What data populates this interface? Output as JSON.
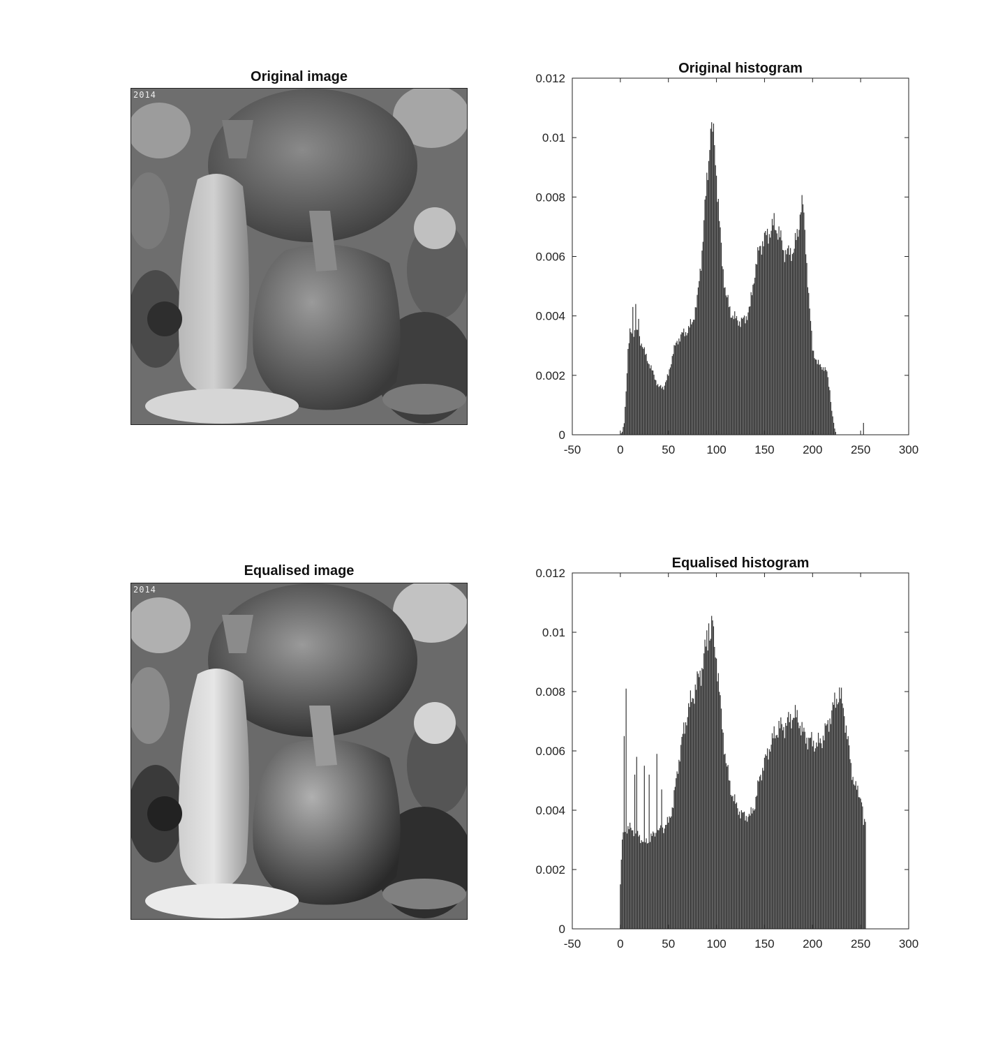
{
  "panels": {
    "original_image": {
      "title": "Original image",
      "stamp": "2014"
    },
    "equalised_image": {
      "title": "Equalised image",
      "stamp": "2014"
    }
  },
  "chart_data": [
    {
      "type": "bar",
      "title": "Original histogram",
      "xlabel": "",
      "ylabel": "",
      "xlim": [
        -50,
        300
      ],
      "ylim": [
        0,
        0.012
      ],
      "xticks": [
        -50,
        0,
        50,
        100,
        150,
        200,
        250,
        300
      ],
      "xtick_labels": [
        "-50",
        "0",
        "50",
        "100",
        "150",
        "200",
        "250",
        "300"
      ],
      "yticks": [
        0,
        0.002,
        0.004,
        0.006,
        0.008,
        0.01,
        0.012
      ],
      "ytick_labels": [
        "0",
        "0.002",
        "0.004",
        "0.006",
        "0.008",
        "0.01",
        "0.012"
      ],
      "grid": false,
      "bar_color": "#333333",
      "profile": [
        [
          0,
          0
        ],
        [
          2,
          0.0001
        ],
        [
          4,
          0.0004
        ],
        [
          6,
          0.0015
        ],
        [
          8,
          0.0028
        ],
        [
          10,
          0.0034
        ],
        [
          14,
          0.0035
        ],
        [
          18,
          0.0034
        ],
        [
          22,
          0.0031
        ],
        [
          26,
          0.0027
        ],
        [
          30,
          0.0024
        ],
        [
          35,
          0.002
        ],
        [
          40,
          0.0016
        ],
        [
          45,
          0.0016
        ],
        [
          50,
          0.002
        ],
        [
          55,
          0.0028
        ],
        [
          60,
          0.0032
        ],
        [
          65,
          0.0034
        ],
        [
          70,
          0.0035
        ],
        [
          75,
          0.0038
        ],
        [
          80,
          0.0045
        ],
        [
          85,
          0.0062
        ],
        [
          90,
          0.0085
        ],
        [
          93,
          0.0098
        ],
        [
          96,
          0.0102
        ],
        [
          98,
          0.0098
        ],
        [
          100,
          0.0088
        ],
        [
          103,
          0.0072
        ],
        [
          106,
          0.0058
        ],
        [
          110,
          0.0047
        ],
        [
          115,
          0.0041
        ],
        [
          120,
          0.0039
        ],
        [
          125,
          0.0038
        ],
        [
          130,
          0.0039
        ],
        [
          135,
          0.0043
        ],
        [
          140,
          0.0055
        ],
        [
          145,
          0.0063
        ],
        [
          150,
          0.0066
        ],
        [
          155,
          0.0068
        ],
        [
          160,
          0.0071
        ],
        [
          165,
          0.0068
        ],
        [
          170,
          0.0062
        ],
        [
          175,
          0.0061
        ],
        [
          180,
          0.0062
        ],
        [
          185,
          0.0068
        ],
        [
          188,
          0.0078
        ],
        [
          190,
          0.0077
        ],
        [
          193,
          0.0063
        ],
        [
          197,
          0.0042
        ],
        [
          200,
          0.0029
        ],
        [
          205,
          0.0024
        ],
        [
          210,
          0.0023
        ],
        [
          215,
          0.0021
        ],
        [
          218,
          0.0015
        ],
        [
          220,
          0.0008
        ],
        [
          223,
          0.0002
        ],
        [
          225,
          0
        ]
      ],
      "spikes": [
        [
          13,
          0.0043
        ],
        [
          16,
          0.0044
        ],
        [
          19,
          0.0039
        ],
        [
          94,
          0.0103
        ],
        [
          253,
          0.0004
        ]
      ]
    },
    {
      "type": "bar",
      "title": "Equalised histogram",
      "xlabel": "",
      "ylabel": "",
      "xlim": [
        -50,
        300
      ],
      "ylim": [
        0,
        0.012
      ],
      "xticks": [
        -50,
        0,
        50,
        100,
        150,
        200,
        250,
        300
      ],
      "xtick_labels": [
        "-50",
        "0",
        "50",
        "100",
        "150",
        "200",
        "250",
        "300"
      ],
      "yticks": [
        0,
        0.002,
        0.004,
        0.006,
        0.008,
        0.01,
        0.012
      ],
      "ytick_labels": [
        "0",
        "0.002",
        "0.004",
        "0.006",
        "0.008",
        "0.01",
        "0.012"
      ],
      "grid": false,
      "bar_color": "#333333",
      "profile": [
        [
          0,
          0.0015
        ],
        [
          2,
          0.003
        ],
        [
          5,
          0.0033
        ],
        [
          10,
          0.0034
        ],
        [
          15,
          0.0033
        ],
        [
          20,
          0.0031
        ],
        [
          25,
          0.0029
        ],
        [
          30,
          0.003
        ],
        [
          35,
          0.0032
        ],
        [
          40,
          0.0033
        ],
        [
          45,
          0.0034
        ],
        [
          50,
          0.0036
        ],
        [
          55,
          0.0042
        ],
        [
          60,
          0.0055
        ],
        [
          65,
          0.0065
        ],
        [
          70,
          0.0073
        ],
        [
          75,
          0.0078
        ],
        [
          80,
          0.0083
        ],
        [
          85,
          0.0088
        ],
        [
          90,
          0.0097
        ],
        [
          95,
          0.0101
        ],
        [
          100,
          0.0092
        ],
        [
          105,
          0.0072
        ],
        [
          110,
          0.0056
        ],
        [
          115,
          0.0047
        ],
        [
          120,
          0.0042
        ],
        [
          125,
          0.0039
        ],
        [
          130,
          0.0038
        ],
        [
          135,
          0.0038
        ],
        [
          140,
          0.0042
        ],
        [
          145,
          0.0051
        ],
        [
          150,
          0.0056
        ],
        [
          155,
          0.0061
        ],
        [
          160,
          0.0065
        ],
        [
          165,
          0.0068
        ],
        [
          170,
          0.0068
        ],
        [
          175,
          0.007
        ],
        [
          180,
          0.0072
        ],
        [
          185,
          0.0071
        ],
        [
          190,
          0.0066
        ],
        [
          195,
          0.0064
        ],
        [
          200,
          0.0063
        ],
        [
          205,
          0.0062
        ],
        [
          210,
          0.0064
        ],
        [
          215,
          0.0068
        ],
        [
          220,
          0.0073
        ],
        [
          225,
          0.0078
        ],
        [
          228,
          0.0079
        ],
        [
          232,
          0.0075
        ],
        [
          236,
          0.0065
        ],
        [
          240,
          0.0055
        ],
        [
          244,
          0.0048
        ],
        [
          248,
          0.0046
        ],
        [
          251,
          0.0044
        ],
        [
          253,
          0.0035
        ],
        [
          255,
          0.0036
        ]
      ],
      "spikes": [
        [
          4,
          0.0065
        ],
        [
          6,
          0.0081
        ],
        [
          15,
          0.0052
        ],
        [
          17,
          0.0058
        ],
        [
          25,
          0.0055
        ],
        [
          30,
          0.0052
        ],
        [
          38,
          0.0059
        ],
        [
          43,
          0.0047
        ],
        [
          92,
          0.0103
        ],
        [
          96,
          0.0104
        ]
      ]
    }
  ]
}
